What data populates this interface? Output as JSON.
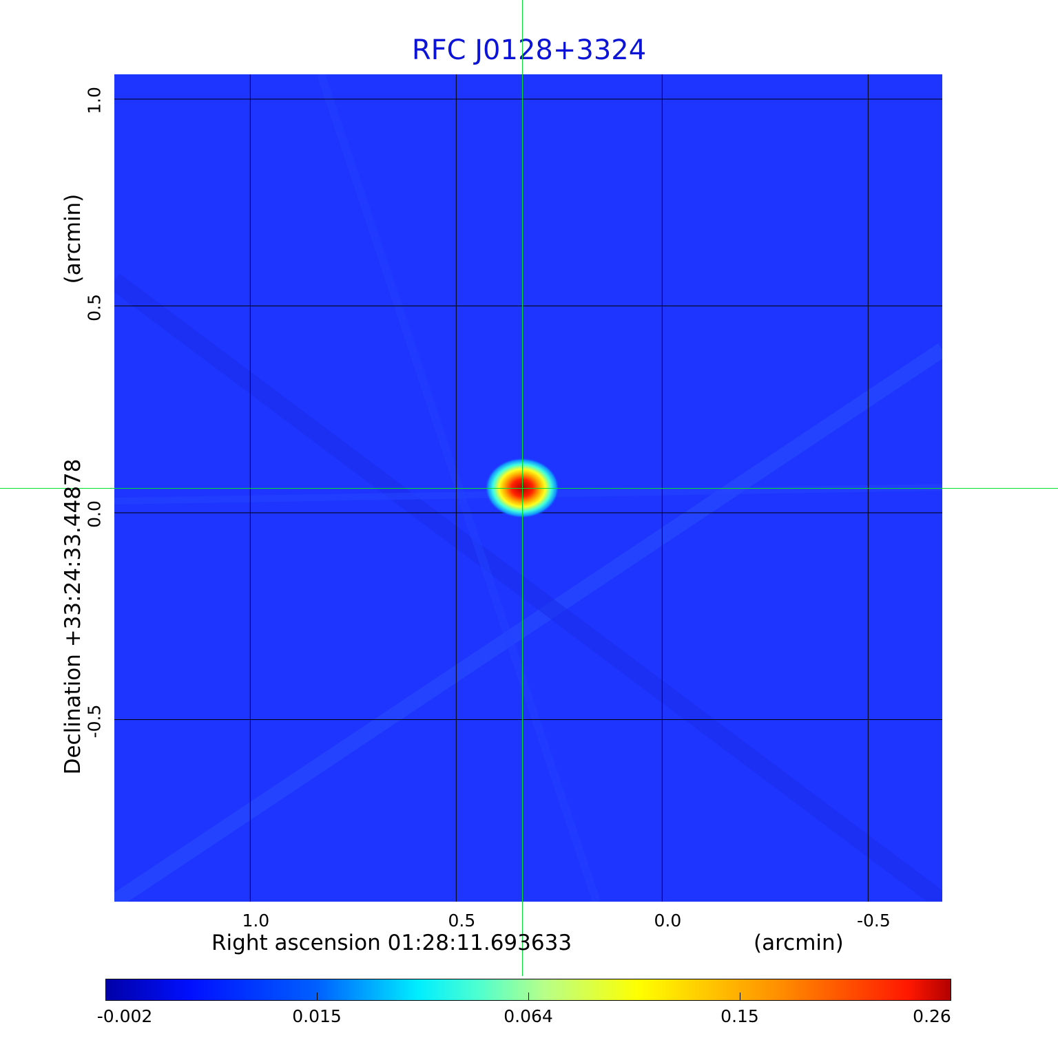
{
  "title": "RFC J0128+3324",
  "colors": {
    "title": "#0b13d6",
    "crosshair": "#00e030",
    "background_map": "#1e34ff"
  },
  "chart_data": {
    "type": "heatmap",
    "title": "RFC J0128+3324",
    "xlabel": "Right ascension  01:28:11.693633",
    "xunit": "(arcmin)",
    "ylabel": "Declination  +33:24:33.44878",
    "yunit": "(arcmin)",
    "x_ticks": [
      "1.0",
      "0.5",
      "0.0",
      "-0.5"
    ],
    "x_tick_values": [
      1.0,
      0.5,
      0.0,
      -0.5
    ],
    "y_ticks": [
      "1.0",
      "0.5",
      "0.0",
      "-0.5"
    ],
    "y_tick_values": [
      1.0,
      0.5,
      0.0,
      -0.5
    ],
    "xlim": [
      1.33,
      -0.68
    ],
    "ylim": [
      -0.94,
      1.06
    ],
    "grid": true,
    "source_peak": {
      "x": 0.34,
      "y": 0.06,
      "value": 0.26
    },
    "crosshair": {
      "x": 0.34,
      "y": 0.06
    },
    "colorbar": {
      "labels": [
        "-0.002",
        "0.015",
        "0.064",
        "0.15",
        "0.26"
      ],
      "values": [
        -0.002,
        0.015,
        0.064,
        0.15,
        0.26
      ],
      "colormap": "jet"
    }
  }
}
